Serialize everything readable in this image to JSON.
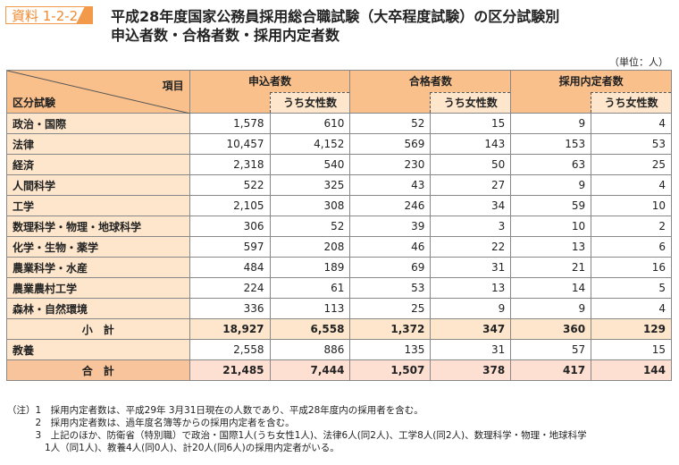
{
  "badge": "資料 1-2-2",
  "title": [
    "平成28年度国家公務員採用総合職試験（大卒程度試験）の区分試験別",
    "申込者数・合格者数・採用内定者数"
  ],
  "unit": "（単位：人）",
  "headers": {
    "item": "項目",
    "category": "区分試験",
    "groups": [
      "申込者数",
      "合格者数",
      "採用内定者数"
    ],
    "sub": "うち女性数"
  },
  "rows": [
    {
      "label": "政治・国際",
      "v": [
        "1,578",
        "610",
        "52",
        "15",
        "9",
        "4"
      ]
    },
    {
      "label": "法律",
      "v": [
        "10,457",
        "4,152",
        "569",
        "143",
        "153",
        "53"
      ]
    },
    {
      "label": "経済",
      "v": [
        "2,318",
        "540",
        "230",
        "50",
        "63",
        "25"
      ]
    },
    {
      "label": "人間科学",
      "v": [
        "522",
        "325",
        "43",
        "27",
        "9",
        "4"
      ]
    },
    {
      "label": "工学",
      "v": [
        "2,105",
        "308",
        "246",
        "34",
        "59",
        "10"
      ]
    },
    {
      "label": "数理科学・物理・地球科学",
      "v": [
        "306",
        "52",
        "39",
        "3",
        "10",
        "2"
      ]
    },
    {
      "label": "化学・生物・薬学",
      "v": [
        "597",
        "208",
        "46",
        "22",
        "13",
        "6"
      ]
    },
    {
      "label": "農業科学・水産",
      "v": [
        "484",
        "189",
        "69",
        "31",
        "21",
        "16"
      ]
    },
    {
      "label": "農業農村工学",
      "v": [
        "224",
        "61",
        "53",
        "13",
        "14",
        "5"
      ]
    },
    {
      "label": "森林・自然環境",
      "v": [
        "336",
        "113",
        "25",
        "9",
        "9",
        "4"
      ]
    },
    {
      "label": "小　計",
      "v": [
        "18,927",
        "6,558",
        "1,372",
        "347",
        "360",
        "129"
      ],
      "type": "sub"
    },
    {
      "label": "教養",
      "v": [
        "2,558",
        "886",
        "135",
        "31",
        "57",
        "15"
      ]
    },
    {
      "label": "合　計",
      "v": [
        "21,485",
        "7,444",
        "1,507",
        "378",
        "417",
        "144"
      ],
      "type": "tot"
    }
  ],
  "notes": [
    "（注）1　採用内定者数は、平成29年 3月31日現在の人数であり、平成28年度内の採用者を含む。",
    "　　　2　採用内定者数は、過年度名簿等からの採用内定者を含む。",
    "　　　3　上記のほか、防衛省（特別職）で政治・国際1人(うち女性1人)、法律6人(同2人)、工学8人(同2人)、数理科学・物理・地球科学",
    "　　　　1人（同1人)、教養4人(同0人)、計20人(同6人)の採用内定者がいる。"
  ]
}
